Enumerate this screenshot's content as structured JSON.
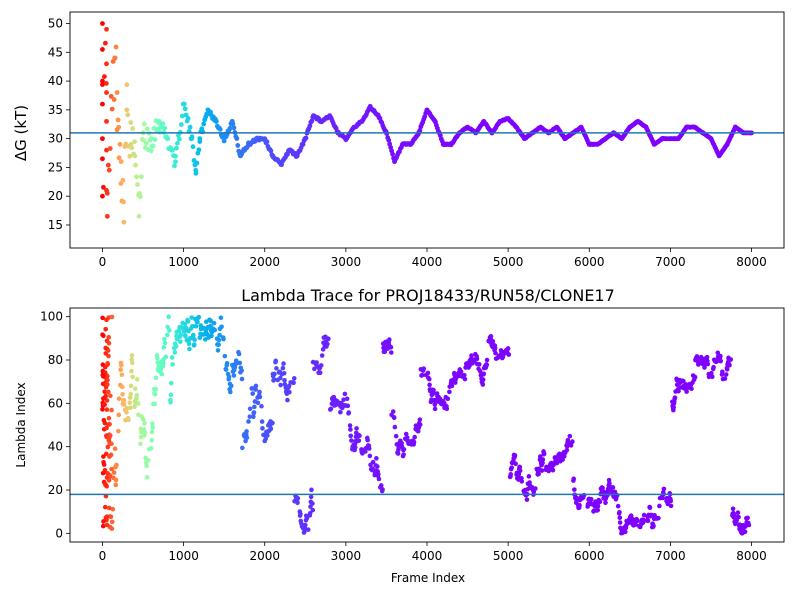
{
  "chart_data": [
    {
      "type": "scatter",
      "title": "",
      "xlabel": "",
      "ylabel": "ΔG (kT)",
      "xlim": [
        -400,
        8400
      ],
      "ylim": [
        11,
        52
      ],
      "xticks": [
        "0",
        "1000",
        "2000",
        "3000",
        "4000",
        "5000",
        "6000",
        "7000",
        "8000"
      ],
      "yticks": [
        "15",
        "20",
        "25",
        "30",
        "35",
        "40",
        "45",
        "50"
      ],
      "hline": 31,
      "color_by": "frame",
      "colormap": "rainbow (early frames red, late frames violet)",
      "series": [
        {
          "points_key_frames": [
            [
              0,
              50
            ],
            [
              0,
              45.5
            ],
            [
              0,
              40
            ],
            [
              0,
              36
            ],
            [
              0,
              30
            ],
            [
              0,
              26.5
            ],
            [
              0,
              20
            ],
            [
              50,
              49
            ],
            [
              50,
              43
            ],
            [
              50,
              38
            ],
            [
              50,
              33
            ],
            [
              50,
              28
            ],
            [
              50,
              21
            ],
            [
              60,
              16.5
            ],
            [
              150,
              44
            ],
            [
              180,
              38
            ],
            [
              200,
              32
            ],
            [
              230,
              26
            ],
            [
              260,
              19
            ],
            [
              300,
              35
            ],
            [
              350,
              29
            ],
            [
              400,
              27
            ],
            [
              450,
              16.5
            ],
            [
              500,
              31
            ],
            [
              600,
              30
            ],
            [
              700,
              33
            ],
            [
              800,
              30
            ],
            [
              900,
              26
            ],
            [
              1000,
              36
            ],
            [
              1100,
              30
            ],
            [
              1150,
              24.5
            ],
            [
              1200,
              30
            ],
            [
              1300,
              35
            ],
            [
              1400,
              33
            ],
            [
              1500,
              30
            ],
            [
              1600,
              33
            ],
            [
              1700,
              27
            ],
            [
              1800,
              29
            ],
            [
              1900,
              30
            ],
            [
              2000,
              30
            ],
            [
              2100,
              27
            ],
            [
              2200,
              25.5
            ],
            [
              2300,
              28
            ],
            [
              2400,
              27
            ],
            [
              2500,
              30
            ],
            [
              2600,
              34
            ],
            [
              2700,
              33
            ],
            [
              2800,
              34
            ],
            [
              2900,
              31
            ],
            [
              3000,
              30
            ],
            [
              3100,
              32
            ],
            [
              3200,
              33
            ],
            [
              3300,
              35.5
            ],
            [
              3400,
              34
            ],
            [
              3500,
              31
            ],
            [
              3600,
              26
            ],
            [
              3700,
              29
            ],
            [
              3800,
              29
            ],
            [
              3900,
              31
            ],
            [
              4000,
              35
            ],
            [
              4100,
              33
            ],
            [
              4200,
              29
            ],
            [
              4300,
              29
            ],
            [
              4400,
              31
            ],
            [
              4500,
              32
            ],
            [
              4600,
              31
            ],
            [
              4700,
              33
            ],
            [
              4800,
              31
            ],
            [
              4900,
              33
            ],
            [
              5000,
              33.5
            ],
            [
              5100,
              32
            ],
            [
              5200,
              30
            ],
            [
              5300,
              31
            ],
            [
              5400,
              32
            ],
            [
              5500,
              31
            ],
            [
              5600,
              32
            ],
            [
              5700,
              30
            ],
            [
              5800,
              31
            ],
            [
              5900,
              32
            ],
            [
              6000,
              29
            ],
            [
              6100,
              29
            ],
            [
              6200,
              30
            ],
            [
              6300,
              31
            ],
            [
              6400,
              30
            ],
            [
              6500,
              32
            ],
            [
              6600,
              33
            ],
            [
              6700,
              32
            ],
            [
              6800,
              29
            ],
            [
              6900,
              30
            ],
            [
              7000,
              30
            ],
            [
              7100,
              30
            ],
            [
              7200,
              32
            ],
            [
              7300,
              32
            ],
            [
              7400,
              31
            ],
            [
              7500,
              30
            ],
            [
              7600,
              27
            ],
            [
              7700,
              29
            ],
            [
              7800,
              32
            ],
            [
              7900,
              31
            ],
            [
              8000,
              31
            ]
          ]
        }
      ]
    },
    {
      "type": "scatter",
      "title": "Lambda Trace for PROJ18433/RUN58/CLONE17",
      "xlabel": "Frame Index",
      "ylabel": "Lambda Index",
      "xlim": [
        -400,
        8400
      ],
      "ylim": [
        -4,
        104
      ],
      "xticks": [
        "0",
        "1000",
        "2000",
        "3000",
        "4000",
        "5000",
        "6000",
        "7000",
        "8000"
      ],
      "yticks": [
        "0",
        "20",
        "40",
        "60",
        "80",
        "100"
      ],
      "hline": 18,
      "x_range": [
        0,
        8000
      ],
      "y_range": [
        0,
        100
      ],
      "color_by": "frame",
      "colormap": "rainbow (early frames red, late frames violet)"
    }
  ]
}
